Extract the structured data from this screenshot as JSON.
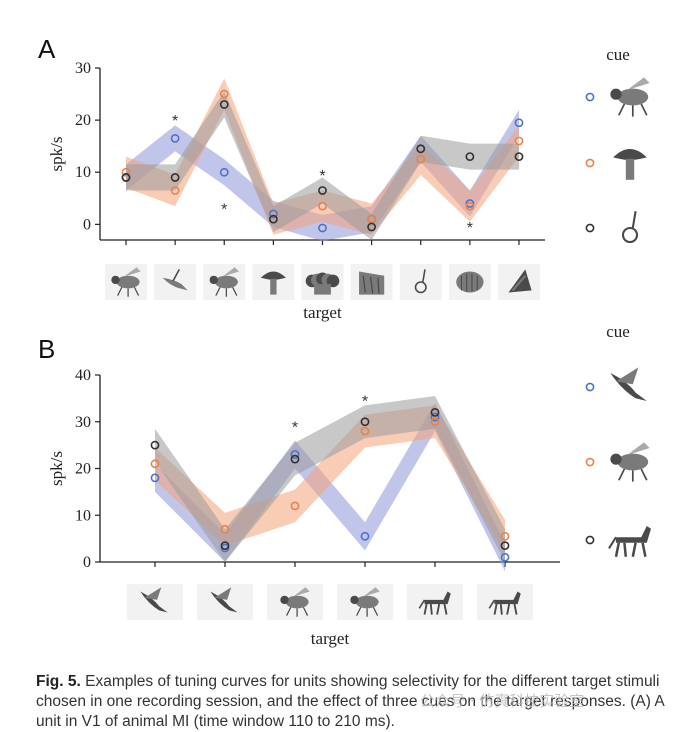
{
  "colors": {
    "blue": "#4a74c9",
    "orange": "#e8824f",
    "black": "#333333",
    "blue_band": "#8e96d8",
    "orange_band": "#f4a27a",
    "gray_band": "#9a9a9a"
  },
  "caption": {
    "label": "Fig. 5.",
    "text": "Examples of tuning curves for units showing selectivity for the different target stimuli chosen in one recording session, and the effect of three cues on the target responses. (A) A unit in V1 of animal MI (time window 110 to 210 ms)."
  },
  "watermark": "公众号 · 仿真科技实验室",
  "chart_data": [
    {
      "type": "line",
      "panel": "A",
      "ylabel": "spk/s",
      "xlabel": "target",
      "ylim": [
        -3,
        30
      ],
      "yticks": [
        0,
        10,
        20,
        30
      ],
      "x": [
        1,
        2,
        3,
        4,
        5,
        6,
        7,
        8,
        9
      ],
      "target_icons": [
        "fly-icon",
        "bird-icon",
        "fly-icon",
        "mushroom-icon",
        "cauliflower-icon",
        "bark-icon",
        "small-object-icon",
        "hand-icon",
        "shell-icon"
      ],
      "cue_header": "cue",
      "series": [
        {
          "cue": "blue",
          "cue_icon": "fly-icon",
          "values": [
            9,
            16.5,
            10,
            2,
            -0.7,
            1,
            14.5,
            4,
            19.5
          ],
          "band": 2.5
        },
        {
          "cue": "orange",
          "cue_icon": "mushroom-icon",
          "values": [
            10,
            6.5,
            25,
            1,
            3.5,
            1,
            12.5,
            3.5,
            16
          ],
          "band": 3
        },
        {
          "cue": "black",
          "cue_icon": "small-object-icon",
          "values": [
            9,
            9,
            23,
            1,
            6.5,
            -0.5,
            14.5,
            13,
            13
          ],
          "band": 2.5
        }
      ],
      "significance_markers": [
        {
          "x": 2,
          "y": 20,
          "label": "*"
        },
        {
          "x": 3,
          "y": 3,
          "label": "*"
        },
        {
          "x": 5,
          "y": 9.5,
          "label": "*"
        },
        {
          "x": 8,
          "y": -0.5,
          "label": "*"
        }
      ]
    },
    {
      "type": "line",
      "panel": "B",
      "ylabel": "spk/s",
      "xlabel": "target",
      "ylim": [
        0,
        40
      ],
      "yticks": [
        0,
        10,
        20,
        30,
        40
      ],
      "x": [
        1,
        2,
        3,
        4,
        5,
        6
      ],
      "target_icons": [
        "eagle-icon",
        "eagle-icon",
        "fly-icon",
        "fly-icon",
        "horse-icon",
        "horse-icon"
      ],
      "cue_header": "cue",
      "series": [
        {
          "cue": "blue",
          "cue_icon": "eagle-icon",
          "values": [
            18,
            3,
            23,
            5.5,
            31,
            1
          ],
          "band": 3
        },
        {
          "cue": "orange",
          "cue_icon": "fly-icon",
          "values": [
            21,
            7,
            12,
            28,
            30,
            5.5
          ],
          "band": 3.5
        },
        {
          "cue": "black",
          "cue_icon": "horse-icon",
          "values": [
            25,
            3.5,
            22,
            30,
            32,
            3.5
          ],
          "band": 3.5
        }
      ],
      "significance_markers": [
        {
          "x": 3,
          "y": 29,
          "label": "*"
        },
        {
          "x": 4,
          "y": 34.5,
          "label": "*"
        }
      ]
    }
  ]
}
